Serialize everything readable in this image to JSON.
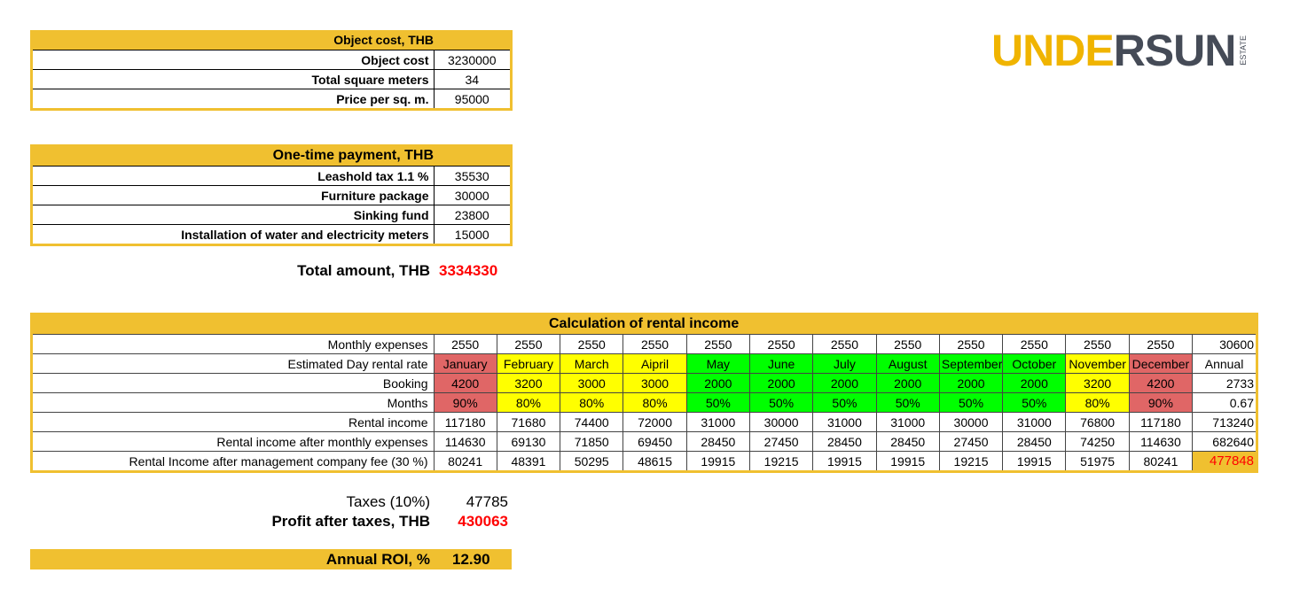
{
  "logo": {
    "part1": "UNDE",
    "part2": "RSUN",
    "sub": "ESTATE",
    "color1": "#f0b400",
    "color2": "#454b57"
  },
  "object_cost": {
    "title": "Object cost, THB",
    "rows": [
      {
        "label": "Object cost",
        "value": "3230000"
      },
      {
        "label": "Total square meters",
        "value": "34"
      },
      {
        "label": "Price per sq. m.",
        "value": "95000"
      }
    ]
  },
  "one_time": {
    "title": "One-time payment, THB",
    "rows": [
      {
        "label": "Leashold tax 1.1 %",
        "value": "35530"
      },
      {
        "label": "Furniture package",
        "value": "30000"
      },
      {
        "label": "Sinking fund",
        "value": "23800"
      },
      {
        "label": "Installation of water and electricity meters",
        "value": "15000"
      }
    ]
  },
  "total": {
    "label": "Total amount, THB",
    "value": "3334330"
  },
  "rental": {
    "title": "Calculation of rental income",
    "colors": {
      "high": "#e06666",
      "mid": "#ffff00",
      "low": "#00ff00",
      "highlight": "#f0c030"
    },
    "season": [
      "high",
      "mid",
      "mid",
      "mid",
      "low",
      "low",
      "low",
      "low",
      "low",
      "low",
      "mid",
      "high"
    ],
    "rows": [
      {
        "label": "Monthly expenses",
        "values": [
          "2550",
          "2550",
          "2550",
          "2550",
          "2550",
          "2550",
          "2550",
          "2550",
          "2550",
          "2550",
          "2550",
          "2550",
          "30600"
        ]
      },
      {
        "label": "Estimated Day rental rate",
        "values": [
          "January",
          "February",
          "March",
          "Aipril",
          "May",
          "June",
          "July",
          "August",
          "September",
          "October",
          "November",
          "December",
          "Annual"
        ],
        "colored": true
      },
      {
        "label": "Booking",
        "values": [
          "4200",
          "3200",
          "3000",
          "3000",
          "2000",
          "2000",
          "2000",
          "2000",
          "2000",
          "2000",
          "3200",
          "4200",
          "2733"
        ],
        "colored": true
      },
      {
        "label": "Months",
        "values": [
          "90%",
          "80%",
          "80%",
          "80%",
          "50%",
          "50%",
          "50%",
          "50%",
          "50%",
          "50%",
          "80%",
          "90%",
          "0.67"
        ],
        "colored": true
      },
      {
        "label": "Rental income",
        "values": [
          "117180",
          "71680",
          "74400",
          "72000",
          "31000",
          "30000",
          "31000",
          "31000",
          "30000",
          "31000",
          "76800",
          "117180",
          "713240"
        ]
      },
      {
        "label": "Rental income after monthly expenses",
        "values": [
          "114630",
          "69130",
          "71850",
          "69450",
          "28450",
          "27450",
          "28450",
          "28450",
          "27450",
          "28450",
          "74250",
          "114630",
          "682640"
        ]
      },
      {
        "label": "Rental Income after management company fee (30 %)",
        "values": [
          "80241",
          "48391",
          "50295",
          "48615",
          "19915",
          "19215",
          "19915",
          "19915",
          "19215",
          "19915",
          "51975",
          "80241",
          "477848"
        ]
      }
    ]
  },
  "taxes": {
    "label": "Taxes (10%)",
    "value": "47785"
  },
  "profit": {
    "label": "Profit after taxes, THB",
    "value": "430063"
  },
  "roi": {
    "label": "Annual ROI, %",
    "value": "12.90"
  }
}
